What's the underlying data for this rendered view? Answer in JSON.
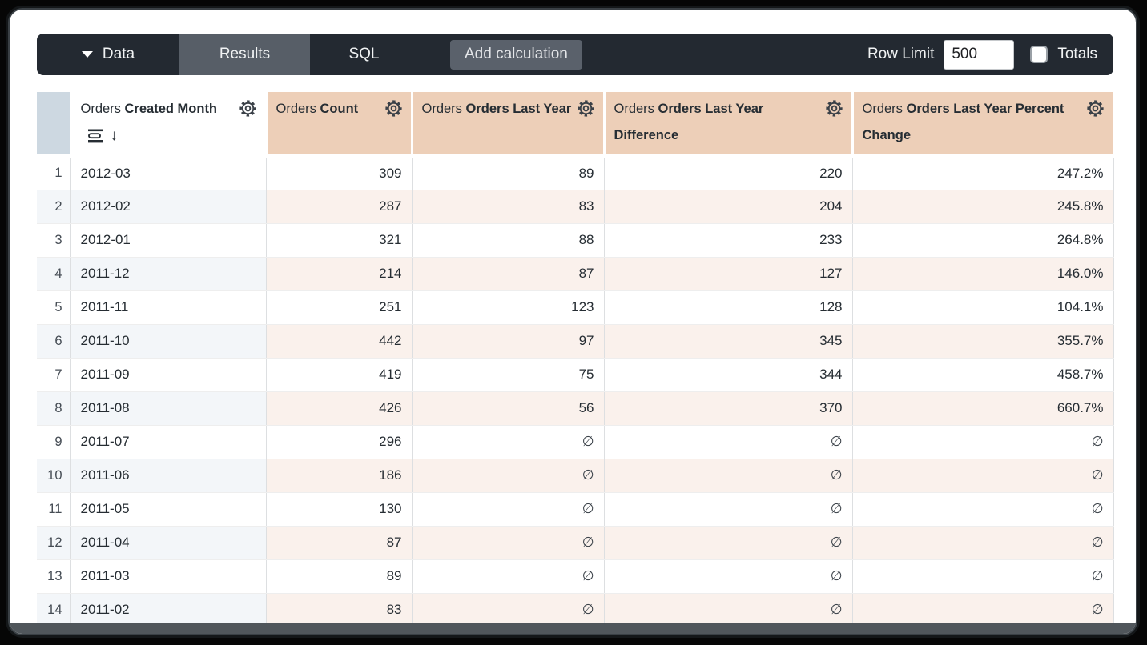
{
  "toolbar": {
    "data_tab": "Data",
    "results_tab": "Results",
    "sql_tab": "SQL",
    "add_calculation": "Add calculation",
    "row_limit_label": "Row Limit",
    "row_limit_value": "500",
    "totals_label": "Totals"
  },
  "icons": {
    "caret_down": "caret-down-icon",
    "gear": "gear-icon",
    "subtotal": "subtotal-icon",
    "sort_descending_glyph": "↓",
    "null_glyph": "∅"
  },
  "colors": {
    "toolbar_bg": "#232931",
    "results_tab_bg": "#575e67",
    "add_calc_bg": "#5a616b",
    "dimension_header_bg": "#cdd8e1",
    "measure_header_bg": "#edcfb8",
    "dimension_stripe": "#f3f6f9",
    "measure_stripe": "#faf1ec",
    "table_text": "#262d33"
  },
  "table": {
    "columns": [
      {
        "view": "Orders",
        "field": "Created Month",
        "kind": "dimension",
        "sorted": "descending"
      },
      {
        "view": "Orders",
        "field": "Count",
        "kind": "measure",
        "sorted": ""
      },
      {
        "view": "Orders",
        "field": "Orders Last Year",
        "kind": "measure",
        "sorted": ""
      },
      {
        "view": "Orders",
        "field": "Orders Last Year Difference",
        "kind": "measure",
        "sorted": ""
      },
      {
        "view": "Orders",
        "field": "Orders Last Year Percent Change",
        "kind": "measure",
        "sorted": ""
      }
    ],
    "rows": [
      [
        "1",
        "2012-03",
        "309",
        "89",
        "220",
        "247.2%"
      ],
      [
        "2",
        "2012-02",
        "287",
        "83",
        "204",
        "245.8%"
      ],
      [
        "3",
        "2012-01",
        "321",
        "88",
        "233",
        "264.8%"
      ],
      [
        "4",
        "2011-12",
        "214",
        "87",
        "127",
        "146.0%"
      ],
      [
        "5",
        "2011-11",
        "251",
        "123",
        "128",
        "104.1%"
      ],
      [
        "6",
        "2011-10",
        "442",
        "97",
        "345",
        "355.7%"
      ],
      [
        "7",
        "2011-09",
        "419",
        "75",
        "344",
        "458.7%"
      ],
      [
        "8",
        "2011-08",
        "426",
        "56",
        "370",
        "660.7%"
      ],
      [
        "9",
        "2011-07",
        "296",
        "∅",
        "∅",
        "∅"
      ],
      [
        "10",
        "2011-06",
        "186",
        "∅",
        "∅",
        "∅"
      ],
      [
        "11",
        "2011-05",
        "130",
        "∅",
        "∅",
        "∅"
      ],
      [
        "12",
        "2011-04",
        "87",
        "∅",
        "∅",
        "∅"
      ],
      [
        "13",
        "2011-03",
        "89",
        "∅",
        "∅",
        "∅"
      ],
      [
        "14",
        "2011-02",
        "83",
        "∅",
        "∅",
        "∅"
      ]
    ]
  }
}
